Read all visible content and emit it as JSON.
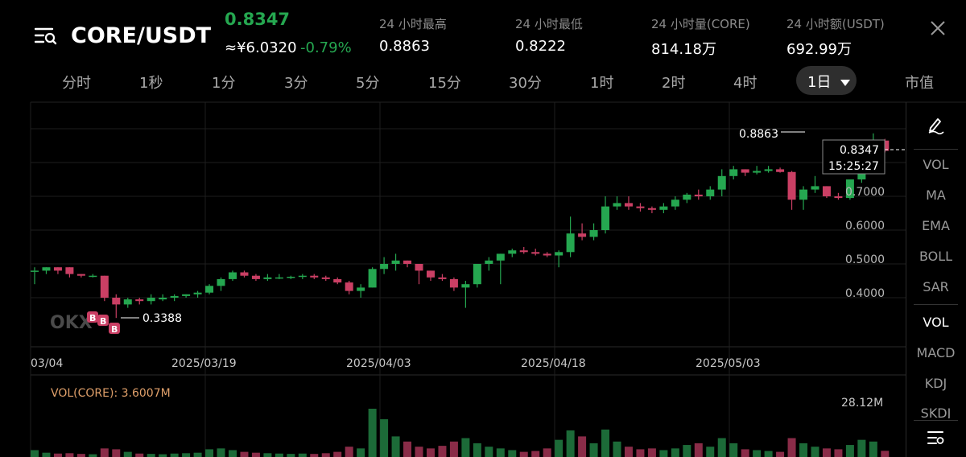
{
  "header": {
    "pair": "CORE/USDT",
    "price": "0.8347",
    "cny": "≈¥6.0320",
    "change": "-0.79%",
    "stats": [
      {
        "label": "24 小时最高",
        "value": "0.8863"
      },
      {
        "label": "24 小时最低",
        "value": "0.8222"
      },
      {
        "label": "24 小时量(CORE)",
        "value": "814.18万"
      },
      {
        "label": "24 小时额(USDT)",
        "value": "692.99万"
      }
    ]
  },
  "tabs": [
    "分时",
    "1秒",
    "1分",
    "3分",
    "5分",
    "15分",
    "30分",
    "1时",
    "2时",
    "4时"
  ],
  "active_tab": "1日",
  "market_cap_tab": "市值",
  "side_main": [
    "VOL",
    "MA",
    "EMA",
    "BOLL",
    "SAR"
  ],
  "side_sub": [
    "VOL",
    "MACD",
    "KDJ",
    "SKDJ"
  ],
  "chart": {
    "price_labels": [
      "0.7000",
      "0.6000",
      "0.5000",
      "0.4000"
    ],
    "date_labels": [
      "03/04",
      "2025/03/19",
      "2025/04/03",
      "2025/04/18",
      "2025/05/03"
    ],
    "high_marker": "0.8863",
    "low_marker": "0.3388",
    "last_price": "0.8347",
    "countdown": "15:25:27",
    "vol_label": "VOL(CORE): 3.6007M",
    "vol_max": "28.12M",
    "buy_marker": "B",
    "watermark": "OKX"
  },
  "colors": {
    "up": "#25a750",
    "down": "#ca3f64",
    "accent_vol": "#e0a06a"
  },
  "chart_data": {
    "type": "candlestick",
    "candles": [
      {
        "o": 0.48,
        "h": 0.49,
        "l": 0.44,
        "c": 0.48
      },
      {
        "o": 0.48,
        "h": 0.49,
        "l": 0.47,
        "c": 0.49
      },
      {
        "o": 0.49,
        "h": 0.49,
        "l": 0.47,
        "c": 0.48
      },
      {
        "o": 0.49,
        "h": 0.49,
        "l": 0.46,
        "c": 0.47
      },
      {
        "o": 0.47,
        "h": 0.47,
        "l": 0.46,
        "c": 0.465
      },
      {
        "o": 0.465,
        "h": 0.47,
        "l": 0.46,
        "c": 0.465
      },
      {
        "o": 0.465,
        "h": 0.465,
        "l": 0.39,
        "c": 0.4
      },
      {
        "o": 0.4,
        "h": 0.41,
        "l": 0.34,
        "c": 0.38
      },
      {
        "o": 0.38,
        "h": 0.4,
        "l": 0.37,
        "c": 0.395
      },
      {
        "o": 0.395,
        "h": 0.4,
        "l": 0.38,
        "c": 0.39
      },
      {
        "o": 0.39,
        "h": 0.41,
        "l": 0.38,
        "c": 0.4
      },
      {
        "o": 0.395,
        "h": 0.41,
        "l": 0.39,
        "c": 0.4
      },
      {
        "o": 0.4,
        "h": 0.41,
        "l": 0.39,
        "c": 0.405
      },
      {
        "o": 0.405,
        "h": 0.41,
        "l": 0.4,
        "c": 0.41
      },
      {
        "o": 0.41,
        "h": 0.42,
        "l": 0.4,
        "c": 0.415
      },
      {
        "o": 0.415,
        "h": 0.44,
        "l": 0.41,
        "c": 0.435
      },
      {
        "o": 0.435,
        "h": 0.46,
        "l": 0.42,
        "c": 0.455
      },
      {
        "o": 0.455,
        "h": 0.48,
        "l": 0.45,
        "c": 0.475
      },
      {
        "o": 0.475,
        "h": 0.48,
        "l": 0.46,
        "c": 0.465
      },
      {
        "o": 0.465,
        "h": 0.47,
        "l": 0.45,
        "c": 0.455
      },
      {
        "o": 0.455,
        "h": 0.47,
        "l": 0.45,
        "c": 0.46
      },
      {
        "o": 0.46,
        "h": 0.47,
        "l": 0.455,
        "c": 0.46
      },
      {
        "o": 0.46,
        "h": 0.465,
        "l": 0.455,
        "c": 0.462
      },
      {
        "o": 0.462,
        "h": 0.47,
        "l": 0.455,
        "c": 0.465
      },
      {
        "o": 0.465,
        "h": 0.47,
        "l": 0.455,
        "c": 0.46
      },
      {
        "o": 0.46,
        "h": 0.465,
        "l": 0.45,
        "c": 0.455
      },
      {
        "o": 0.455,
        "h": 0.46,
        "l": 0.44,
        "c": 0.445
      },
      {
        "o": 0.445,
        "h": 0.45,
        "l": 0.41,
        "c": 0.42
      },
      {
        "o": 0.42,
        "h": 0.44,
        "l": 0.4,
        "c": 0.43
      },
      {
        "o": 0.43,
        "h": 0.49,
        "l": 0.43,
        "c": 0.485
      },
      {
        "o": 0.485,
        "h": 0.52,
        "l": 0.47,
        "c": 0.5
      },
      {
        "o": 0.5,
        "h": 0.53,
        "l": 0.48,
        "c": 0.51
      },
      {
        "o": 0.51,
        "h": 0.51,
        "l": 0.49,
        "c": 0.5
      },
      {
        "o": 0.5,
        "h": 0.5,
        "l": 0.44,
        "c": 0.48
      },
      {
        "o": 0.48,
        "h": 0.48,
        "l": 0.45,
        "c": 0.46
      },
      {
        "o": 0.46,
        "h": 0.47,
        "l": 0.45,
        "c": 0.455
      },
      {
        "o": 0.455,
        "h": 0.46,
        "l": 0.42,
        "c": 0.43
      },
      {
        "o": 0.43,
        "h": 0.45,
        "l": 0.37,
        "c": 0.44
      },
      {
        "o": 0.44,
        "h": 0.5,
        "l": 0.43,
        "c": 0.5
      },
      {
        "o": 0.5,
        "h": 0.52,
        "l": 0.48,
        "c": 0.51
      },
      {
        "o": 0.51,
        "h": 0.53,
        "l": 0.44,
        "c": 0.53
      },
      {
        "o": 0.53,
        "h": 0.545,
        "l": 0.52,
        "c": 0.54
      },
      {
        "o": 0.54,
        "h": 0.55,
        "l": 0.53,
        "c": 0.535
      },
      {
        "o": 0.535,
        "h": 0.545,
        "l": 0.525,
        "c": 0.53
      },
      {
        "o": 0.53,
        "h": 0.535,
        "l": 0.52,
        "c": 0.525
      },
      {
        "o": 0.525,
        "h": 0.54,
        "l": 0.49,
        "c": 0.535
      },
      {
        "o": 0.535,
        "h": 0.64,
        "l": 0.52,
        "c": 0.59
      },
      {
        "o": 0.59,
        "h": 0.62,
        "l": 0.57,
        "c": 0.58
      },
      {
        "o": 0.58,
        "h": 0.62,
        "l": 0.57,
        "c": 0.6
      },
      {
        "o": 0.6,
        "h": 0.7,
        "l": 0.59,
        "c": 0.67
      },
      {
        "o": 0.67,
        "h": 0.7,
        "l": 0.66,
        "c": 0.68
      },
      {
        "o": 0.68,
        "h": 0.7,
        "l": 0.66,
        "c": 0.67
      },
      {
        "o": 0.67,
        "h": 0.68,
        "l": 0.655,
        "c": 0.665
      },
      {
        "o": 0.665,
        "h": 0.67,
        "l": 0.65,
        "c": 0.66
      },
      {
        "o": 0.66,
        "h": 0.68,
        "l": 0.65,
        "c": 0.67
      },
      {
        "o": 0.67,
        "h": 0.7,
        "l": 0.66,
        "c": 0.69
      },
      {
        "o": 0.69,
        "h": 0.71,
        "l": 0.68,
        "c": 0.705
      },
      {
        "o": 0.705,
        "h": 0.72,
        "l": 0.69,
        "c": 0.7
      },
      {
        "o": 0.7,
        "h": 0.73,
        "l": 0.69,
        "c": 0.72
      },
      {
        "o": 0.72,
        "h": 0.78,
        "l": 0.7,
        "c": 0.76
      },
      {
        "o": 0.76,
        "h": 0.79,
        "l": 0.75,
        "c": 0.78
      },
      {
        "o": 0.78,
        "h": 0.78,
        "l": 0.76,
        "c": 0.77
      },
      {
        "o": 0.77,
        "h": 0.79,
        "l": 0.765,
        "c": 0.775
      },
      {
        "o": 0.775,
        "h": 0.79,
        "l": 0.77,
        "c": 0.78
      },
      {
        "o": 0.78,
        "h": 0.785,
        "l": 0.77,
        "c": 0.772
      },
      {
        "o": 0.772,
        "h": 0.775,
        "l": 0.66,
        "c": 0.69
      },
      {
        "o": 0.69,
        "h": 0.73,
        "l": 0.66,
        "c": 0.72
      },
      {
        "o": 0.72,
        "h": 0.76,
        "l": 0.71,
        "c": 0.73
      },
      {
        "o": 0.73,
        "h": 0.73,
        "l": 0.695,
        "c": 0.7
      },
      {
        "o": 0.7,
        "h": 0.71,
        "l": 0.69,
        "c": 0.695
      },
      {
        "o": 0.695,
        "h": 0.75,
        "l": 0.69,
        "c": 0.75
      },
      {
        "o": 0.75,
        "h": 0.83,
        "l": 0.74,
        "c": 0.82
      },
      {
        "o": 0.82,
        "h": 0.8863,
        "l": 0.82,
        "c": 0.865
      },
      {
        "o": 0.865,
        "h": 0.87,
        "l": 0.83,
        "c": 0.8347
      }
    ],
    "volume_unit": "M",
    "volumes": [
      4.0,
      2.5,
      2.0,
      2.2,
      1.8,
      1.6,
      5.0,
      4.5,
      3.0,
      2.0,
      1.8,
      1.6,
      2.0,
      2.2,
      2.5,
      4.5,
      5.0,
      4.0,
      3.0,
      2.5,
      2.2,
      2.0,
      1.8,
      2.0,
      1.8,
      2.2,
      3.0,
      6.0,
      5.0,
      28.12,
      22.0,
      12.0,
      9.0,
      6.0,
      5.0,
      6.5,
      9.0,
      11.0,
      8.0,
      6.0,
      5.0,
      4.0,
      3.0,
      3.5,
      5.0,
      10.0,
      15.5,
      12.0,
      8.0,
      16.0,
      9.0,
      6.0,
      4.5,
      5.0,
      4.0,
      5.0,
      7.0,
      8.0,
      6.0,
      11.0,
      8.0,
      4.5,
      4.0,
      3.5,
      3.0,
      11.0,
      8.0,
      6.0,
      5.0,
      4.5,
      7.0,
      10.0,
      9.0,
      3.6007
    ],
    "ylim": [
      0.3,
      0.9
    ]
  }
}
